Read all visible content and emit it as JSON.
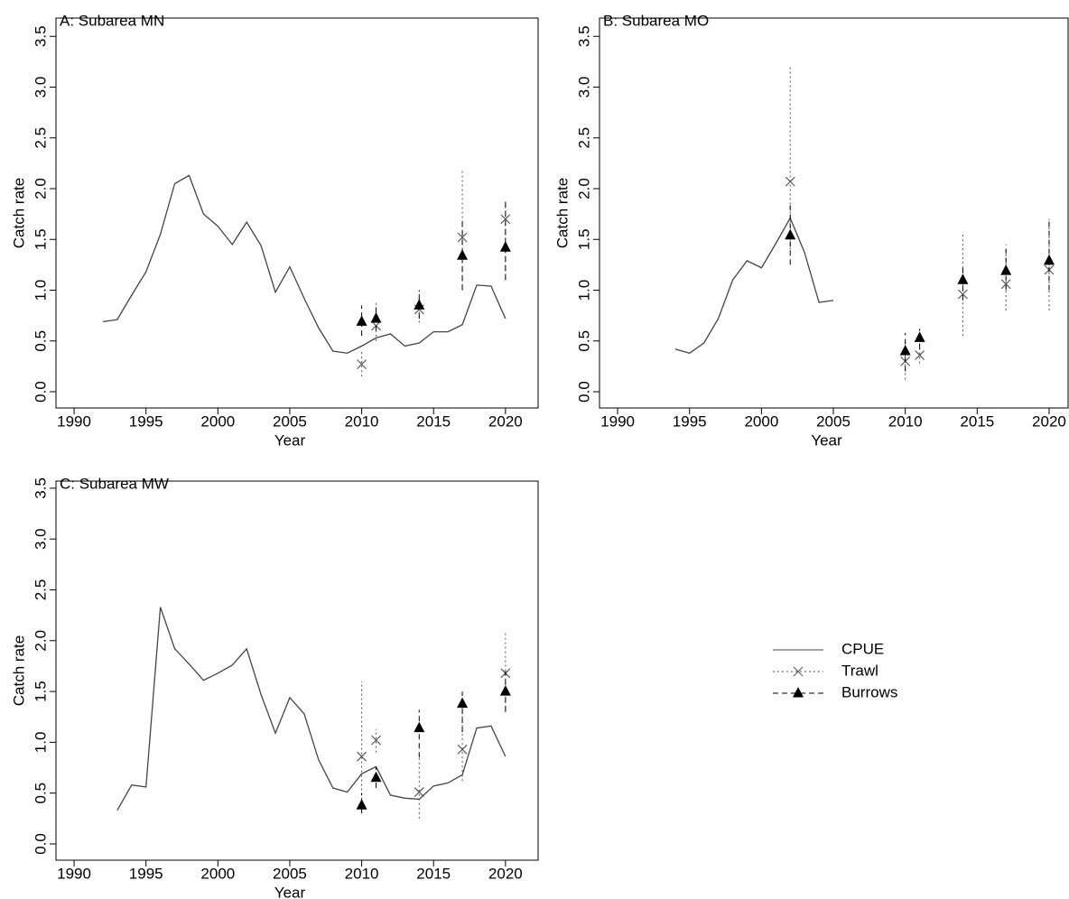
{
  "chart_data": [
    {
      "type": "line",
      "title": "A: Subarea MN",
      "x_label": "Year",
      "y_label": "Catch rate",
      "xlim": [
        1988.74,
        2022.27
      ],
      "ylim": [
        -0.16,
        3.68
      ],
      "xticks": [
        1990,
        1995,
        2000,
        2005,
        2010,
        2015,
        2020
      ],
      "yticks": [
        {
          "value": 0,
          "label": "0.0"
        },
        {
          "value": 0.5,
          "label": "0.5"
        },
        {
          "value": 1,
          "label": "1.0"
        },
        {
          "value": 1.5,
          "label": "1.5"
        },
        {
          "value": 2,
          "label": "2.0"
        },
        {
          "value": 2.5,
          "label": "2.5"
        },
        {
          "value": 3,
          "label": "3.0"
        },
        {
          "value": 3.5,
          "label": "3.5"
        }
      ],
      "series": [
        {
          "name": "CPUE",
          "color": "#444444",
          "marker": "none",
          "x": [
            1992,
            1993,
            1994,
            1995,
            1996,
            1997,
            1998,
            1999,
            2000,
            2001,
            2002,
            2003,
            2004,
            2005,
            2006,
            2007,
            2008,
            2009,
            2010,
            2011,
            2012,
            2013,
            2014,
            2015,
            2016,
            2017,
            2018,
            2019,
            2020
          ],
          "values": [
            0.69,
            0.71,
            0.95,
            1.18,
            1.55,
            2.05,
            2.13,
            1.75,
            1.63,
            1.45,
            1.67,
            1.44,
            0.98,
            1.23,
            0.92,
            0.63,
            0.4,
            0.38,
            0.45,
            0.53,
            0.57,
            0.45,
            0.48,
            0.59,
            0.59,
            0.66,
            1.05,
            1.04,
            0.72
          ]
        },
        {
          "name": "Trawl",
          "color": "#555555",
          "marker": "x",
          "dash": "dotted",
          "x": [
            2010,
            2011,
            2014,
            2017,
            2020
          ],
          "values": [
            0.27,
            0.65,
            0.81,
            1.52,
            1.7
          ],
          "ci_low": [
            0.15,
            0.5,
            0.68,
            1.0,
            1.1
          ],
          "ci_high": [
            0.4,
            0.88,
            1.0,
            2.2,
            1.9
          ]
        },
        {
          "name": "Burrows",
          "color": "#000000",
          "marker": "triangle",
          "dash": "dashed",
          "x": [
            2010,
            2011,
            2014,
            2017,
            2020
          ],
          "values": [
            0.69,
            0.72,
            0.85,
            1.34,
            1.42
          ],
          "ci_low": [
            0.55,
            0.6,
            0.72,
            1.0,
            1.1
          ],
          "ci_high": [
            0.85,
            0.85,
            1.0,
            1.7,
            1.9
          ]
        }
      ]
    },
    {
      "type": "line",
      "title": "B: Subarea MO",
      "x_label": "Year",
      "y_label": "Catch rate",
      "xlim": [
        1988.74,
        2021.32
      ],
      "ylim": [
        -0.16,
        3.68
      ],
      "xticks": [
        1990,
        1995,
        2000,
        2005,
        2010,
        2015,
        2020
      ],
      "yticks": [
        {
          "value": 0,
          "label": "0.0"
        },
        {
          "value": 0.5,
          "label": "0.5"
        },
        {
          "value": 1,
          "label": "1.0"
        },
        {
          "value": 1.5,
          "label": "1.5"
        },
        {
          "value": 2,
          "label": "2.0"
        },
        {
          "value": 2.5,
          "label": "2.5"
        },
        {
          "value": 3,
          "label": "3.0"
        },
        {
          "value": 3.5,
          "label": "3.5"
        }
      ],
      "series": [
        {
          "name": "CPUE",
          "color": "#444444",
          "marker": "none",
          "x": [
            1994,
            1995,
            1996,
            1997,
            1998,
            1999,
            2000,
            2001,
            2002,
            2003,
            2004,
            2005
          ],
          "values": [
            0.42,
            0.38,
            0.48,
            0.72,
            1.1,
            1.29,
            1.22,
            1.46,
            1.71,
            1.37,
            0.88,
            0.9
          ]
        },
        {
          "name": "Trawl",
          "color": "#555555",
          "marker": "x",
          "dash": "dotted",
          "x": [
            2002,
            2010,
            2011,
            2014,
            2017,
            2020
          ],
          "values": [
            2.07,
            0.3,
            0.36,
            0.96,
            1.06,
            1.2
          ],
          "ci_low": [
            1.4,
            0.12,
            0.28,
            0.55,
            0.8,
            0.8
          ],
          "ci_high": [
            3.22,
            0.5,
            0.5,
            1.55,
            1.4,
            1.7
          ]
        },
        {
          "name": "Burrows",
          "color": "#000000",
          "marker": "triangle",
          "dash": "dashed",
          "x": [
            2002,
            2010,
            2011,
            2014,
            2017,
            2020
          ],
          "values": [
            1.54,
            0.4,
            0.53,
            1.1,
            1.19,
            1.29
          ],
          "ci_low": [
            1.25,
            0.2,
            0.42,
            0.9,
            1.0,
            1.0
          ],
          "ci_high": [
            1.85,
            0.58,
            0.62,
            1.25,
            1.45,
            1.7
          ]
        }
      ]
    },
    {
      "type": "line",
      "title": "C: Subarea MW",
      "x_label": "Year",
      "y_label": "Catch rate",
      "xlim": [
        1988.74,
        2022.27
      ],
      "ylim": [
        -0.16,
        3.57
      ],
      "xticks": [
        1990,
        1995,
        2000,
        2005,
        2010,
        2015,
        2020
      ],
      "yticks": [
        {
          "value": 0,
          "label": "0.0"
        },
        {
          "value": 0.5,
          "label": "0.5"
        },
        {
          "value": 1,
          "label": "1.0"
        },
        {
          "value": 1.5,
          "label": "1.5"
        },
        {
          "value": 2,
          "label": "2.0"
        },
        {
          "value": 2.5,
          "label": "2.5"
        },
        {
          "value": 3,
          "label": "3.0"
        },
        {
          "value": 3.5,
          "label": "3.5"
        }
      ],
      "series": [
        {
          "name": "CPUE",
          "color": "#444444",
          "marker": "none",
          "x": [
            1993,
            1994,
            1995,
            1996,
            1997,
            1998,
            1999,
            2000,
            2001,
            2002,
            2003,
            2004,
            2005,
            2006,
            2007,
            2008,
            2009,
            2010,
            2011,
            2012,
            2013,
            2014,
            2015,
            2016,
            2017,
            2018,
            2019,
            2020
          ],
          "values": [
            0.33,
            0.58,
            0.56,
            2.33,
            1.92,
            1.77,
            1.61,
            1.68,
            1.76,
            1.92,
            1.47,
            1.09,
            1.44,
            1.28,
            0.83,
            0.55,
            0.51,
            0.69,
            0.76,
            0.48,
            0.45,
            0.44,
            0.57,
            0.6,
            0.68,
            1.14,
            1.16,
            0.86
          ]
        },
        {
          "name": "Trawl",
          "color": "#555555",
          "marker": "x",
          "dash": "dotted",
          "x": [
            2010,
            2011,
            2014,
            2017,
            2020
          ],
          "values": [
            0.86,
            1.02,
            0.51,
            0.93,
            1.68
          ],
          "ci_low": [
            0.35,
            0.9,
            0.25,
            0.62,
            1.3
          ],
          "ci_high": [
            1.6,
            1.13,
            0.88,
            1.4,
            2.1
          ]
        },
        {
          "name": "Burrows",
          "color": "#000000",
          "marker": "triangle",
          "dash": "dashed",
          "x": [
            2010,
            2011,
            2014,
            2017,
            2020
          ],
          "values": [
            0.38,
            0.65,
            1.14,
            1.38,
            1.5
          ],
          "ci_low": [
            0.3,
            0.55,
            0.85,
            1.1,
            1.3
          ],
          "ci_high": [
            0.5,
            0.75,
            1.32,
            1.5,
            1.7
          ]
        }
      ]
    }
  ]
}
